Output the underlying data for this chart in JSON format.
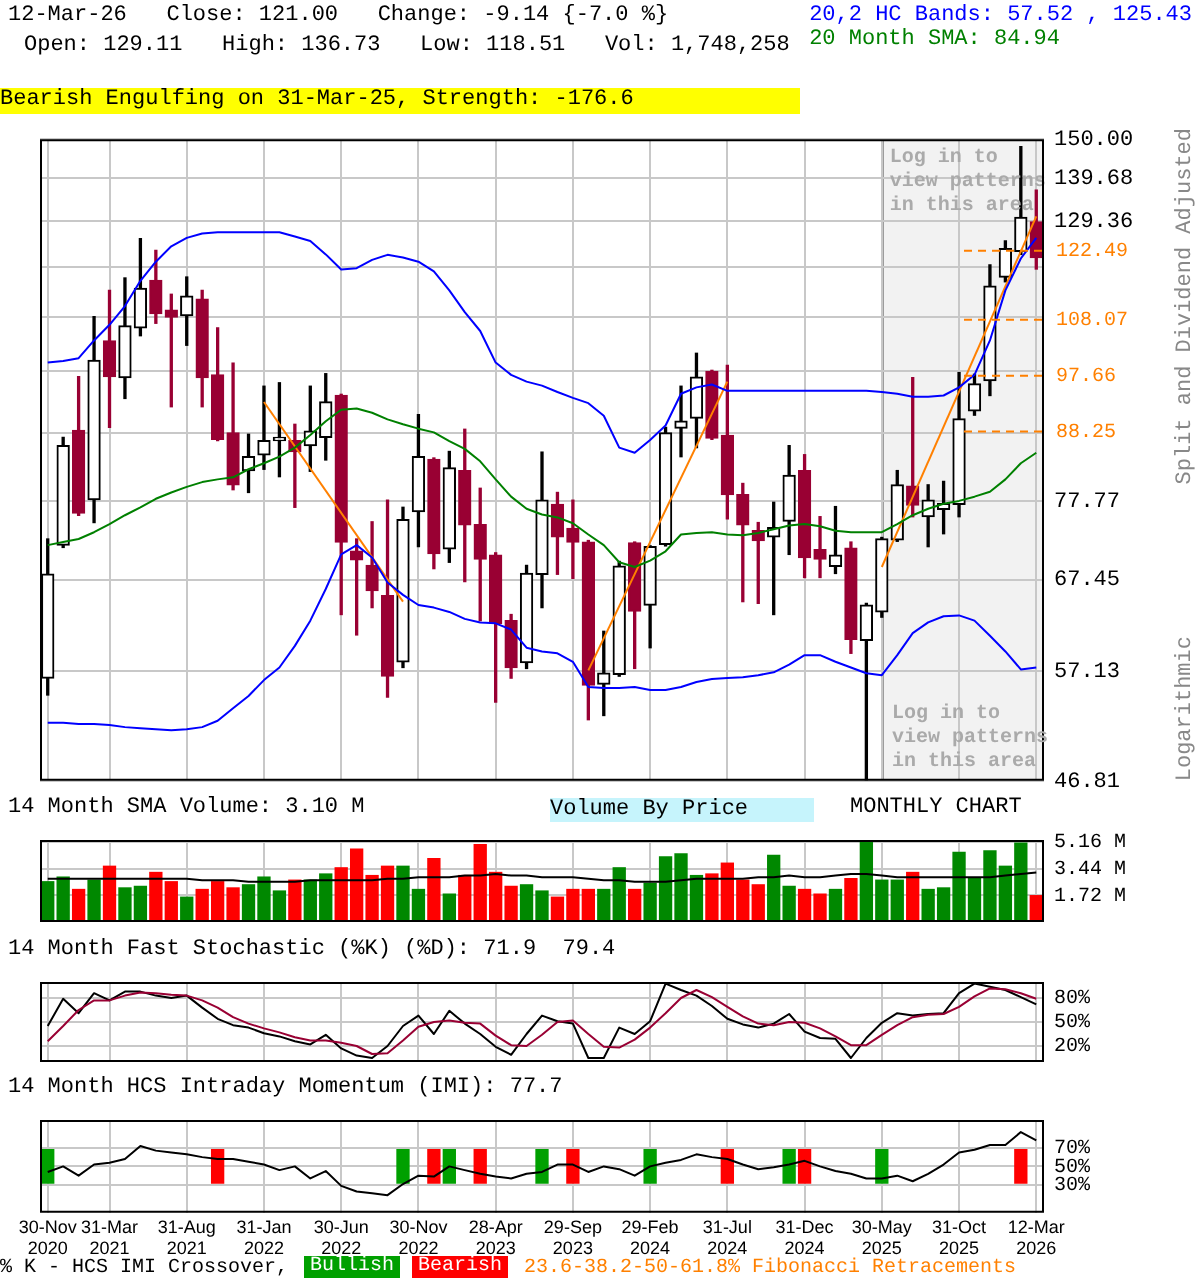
{
  "chart_data": [
    {
      "type": "candlestick",
      "title": "12-Mar-26   Close: 121.00   Change: -9.14 {-7.0 %}",
      "subtitle": "Open: 129.11   High: 136.73   Low: 118.51   Vol: 1,748,258",
      "ylabel": "Split and Dividend Adjusted",
      "categories": [
        "30-Nov 2020",
        null,
        null,
        null,
        "31-Mar 2021",
        null,
        null,
        null,
        null,
        "31-Aug 2021",
        null,
        null,
        null,
        null,
        "31-Jan 2022",
        null,
        null,
        null,
        null,
        "30-Jun 2022",
        null,
        null,
        null,
        null,
        "30-Nov 2022",
        null,
        null,
        null,
        null,
        "28-Apr 2023",
        null,
        null,
        null,
        null,
        "29-Sep 2023",
        null,
        null,
        null,
        null,
        "29-Feb 2024",
        null,
        null,
        null,
        null,
        "31-Jul 2024",
        null,
        null,
        null,
        null,
        "31-Dec 2024",
        null,
        null,
        null,
        null,
        "30-May 2025",
        null,
        null,
        null,
        null,
        "31-Oct 2025",
        null,
        null,
        null,
        null,
        "12-Mar 2026"
      ],
      "ohlc": [
        [
          56.4,
          72.6,
          54.7,
          68.1
        ],
        [
          71.8,
          87.3,
          71.5,
          86.0
        ],
        [
          88.4,
          97.5,
          75.8,
          76.1
        ],
        [
          78.0,
          108.7,
          74.8,
          100.4
        ],
        [
          104.0,
          114.0,
          88.9,
          97.5
        ],
        [
          97.3,
          116.6,
          93.7,
          106.9
        ],
        [
          106.5,
          125.2,
          105.0,
          114.4
        ],
        [
          116.1,
          122.6,
          107.4,
          109.3
        ],
        [
          110.0,
          113.2,
          92.3,
          108.6
        ],
        [
          108.9,
          116.8,
          103.2,
          112.8
        ],
        [
          112.2,
          114.0,
          92.3,
          97.3
        ],
        [
          97.8,
          106.5,
          86.8,
          87.0
        ],
        [
          88.0,
          99.9,
          79.4,
          80.1
        ],
        [
          82.2,
          87.8,
          79.0,
          84.3
        ],
        [
          84.6,
          95.8,
          82.4,
          86.8
        ],
        [
          86.8,
          96.4,
          81.3,
          87.3
        ],
        [
          86.8,
          89.4,
          76.9,
          85.1
        ],
        [
          86.0,
          95.8,
          82.1,
          88.3
        ],
        [
          87.3,
          98.0,
          83.8,
          93.1
        ],
        [
          94.2,
          94.4,
          63.3,
          72.2
        ],
        [
          71.0,
          72.6,
          61.0,
          69.9
        ],
        [
          69.2,
          74.9,
          64.1,
          66.1
        ],
        [
          65.5,
          77.9,
          54.5,
          56.6
        ],
        [
          58.1,
          76.9,
          57.5,
          75.2
        ],
        [
          76.3,
          91.0,
          71.6,
          84.3
        ],
        [
          83.9,
          84.1,
          68.8,
          70.7
        ],
        [
          71.3,
          85.1,
          69.6,
          82.6
        ],
        [
          82.2,
          88.6,
          67.2,
          74.5
        ],
        [
          74.5,
          79.6,
          62.6,
          70.0
        ],
        [
          70.5,
          70.8,
          54.0,
          62.3
        ],
        [
          62.6,
          63.3,
          56.4,
          57.5
        ],
        [
          58.0,
          69.2,
          57.4,
          68.2
        ],
        [
          68.1,
          85.0,
          64.1,
          77.9
        ],
        [
          77.3,
          79.0,
          68.1,
          72.9
        ],
        [
          74.0,
          77.9,
          67.6,
          72.2
        ],
        [
          72.2,
          72.4,
          52.3,
          55.7
        ],
        [
          55.8,
          61.4,
          52.7,
          56.9
        ],
        [
          56.8,
          69.7,
          56.6,
          69.1
        ],
        [
          72.1,
          72.2,
          57.4,
          63.7
        ],
        [
          64.4,
          71.7,
          59.6,
          71.6
        ],
        [
          71.9,
          88.9,
          71.7,
          88.0
        ],
        [
          88.8,
          95.8,
          84.3,
          89.9
        ],
        [
          90.4,
          101.7,
          85.7,
          97.4
        ],
        [
          98.4,
          98.6,
          87.0,
          87.2
        ],
        [
          87.6,
          99.5,
          75.3,
          78.7
        ],
        [
          78.7,
          80.3,
          64.8,
          74.5
        ],
        [
          73.7,
          74.8,
          64.6,
          72.4
        ],
        [
          72.9,
          77.6,
          63.3,
          74.1
        ],
        [
          75.0,
          86.0,
          70.6,
          81.5
        ],
        [
          82.2,
          84.6,
          67.7,
          70.2
        ],
        [
          71.2,
          75.6,
          67.7,
          70.0
        ],
        [
          69.1,
          77.0,
          68.2,
          70.5
        ],
        [
          71.4,
          72.2,
          59.0,
          60.5
        ],
        [
          60.4,
          64.6,
          46.9,
          64.4
        ],
        [
          63.6,
          72.8,
          63.0,
          72.6
        ],
        [
          72.5,
          82.2,
          72.3,
          80.1
        ],
        [
          79.9,
          97.3,
          75.6,
          77.2
        ],
        [
          75.6,
          80.1,
          71.6,
          77.9
        ],
        [
          76.6,
          80.6,
          73.3,
          77.4
        ],
        [
          77.3,
          98.2,
          75.6,
          90.3
        ],
        [
          91.6,
          97.9,
          90.9,
          96.2
        ],
        [
          96.8,
          119.4,
          94.2,
          114.9
        ],
        [
          116.8,
          124.7,
          115.8,
          123.0
        ],
        [
          122.4,
          148.0,
          121.7,
          130.14
        ],
        [
          129.11,
          136.73,
          118.51,
          121.0
        ]
      ],
      "colors": [
        "#000000",
        "#000000",
        "#990033",
        "#000000",
        "#990033",
        "#000000",
        "#000000",
        "#990033",
        "#990033",
        "#000000",
        "#990033",
        "#990033",
        "#990033",
        "#000000",
        "#000000",
        "#000000",
        "#990033",
        "#000000",
        "#000000",
        "#990033",
        "#990033",
        "#990033",
        "#990033",
        "#000000",
        "#000000",
        "#990033",
        "#000000",
        "#990033",
        "#990033",
        "#990033",
        "#990033",
        "#000000",
        "#000000",
        "#990033",
        "#990033",
        "#990033",
        "#000000",
        "#000000",
        "#990033",
        "#000000",
        "#000000",
        "#000000",
        "#000000",
        "#990033",
        "#990033",
        "#990033",
        "#990033",
        "#000000",
        "#000000",
        "#990033",
        "#990033",
        "#000000",
        "#990033",
        "#000000",
        "#000000",
        "#000000",
        "#990033",
        "#000000",
        "#000000",
        "#000000",
        "#000000",
        "#000000",
        "#000000",
        "#000000",
        "#990033"
      ],
      "log": true,
      "ylim": [
        46.81,
        150
      ],
      "yticks": [
        {
          "value": 150,
          "label": "150.00"
        },
        139.68,
        129.36,
        {
          "value": 119.04,
          "label": null
        },
        {
          "value": 108.72,
          "label": null
        },
        {
          "value": 98.4,
          "label": null
        },
        {
          "value": 88.08,
          "label": null
        },
        77.77,
        67.45,
        57.13,
        46.81
      ],
      "grid": true,
      "legend": "top right",
      "tick_labels": "y",
      "series": [
        {
          "type": "line",
          "name": "20,2 HC Bands: 57.52 , 125.43",
          "color": "#0000ff",
          "values": [
            100.0,
            100.3,
            100.8,
            104.1,
            107.1,
            110.8,
            116.0,
            120.1,
            123.5,
            125.4,
            126.4,
            126.7,
            126.7,
            126.7,
            126.7,
            126.7,
            125.7,
            124.7,
            121.7,
            118.4,
            118.7,
            120.5,
            121.6,
            121.0,
            120.1,
            118.0,
            114.0,
            109.6,
            105.9,
            100.0,
            97.8,
            96.6,
            95.9,
            94.8,
            93.8,
            92.9,
            90.8,
            85.7,
            84.9,
            86.9,
            89.2,
            94.5,
            95.6,
            96.1,
            95.0,
            95.0,
            95.0,
            95.0,
            95.0,
            95.0,
            95.0,
            95.0,
            95.0,
            95.0,
            94.8,
            94.5,
            94.0,
            94.0,
            94.2,
            95.6,
            97.8,
            104.1,
            114.0,
            120.8,
            125.4
          ]
        },
        {
          "type": "line",
          "color": "#0000ff",
          "values": [
            52.0,
            52.0,
            51.9,
            51.9,
            51.8,
            51.6,
            51.5,
            51.4,
            51.3,
            51.4,
            51.6,
            52.2,
            53.4,
            54.6,
            56.2,
            57.5,
            59.8,
            62.6,
            66.3,
            70.6,
            71.8,
            70.2,
            67.1,
            65.6,
            64.4,
            64.1,
            63.6,
            62.8,
            62.4,
            62.3,
            61.6,
            59.6,
            59.2,
            59.0,
            58.1,
            55.5,
            55.4,
            55.4,
            55.5,
            55.2,
            55.2,
            55.5,
            56.0,
            56.3,
            56.4,
            56.5,
            56.7,
            57.0,
            57.8,
            58.8,
            58.8,
            58.1,
            57.5,
            56.9,
            56.7,
            58.8,
            61.2,
            62.4,
            63.1,
            63.2,
            62.6,
            60.9,
            59.2,
            57.3,
            57.5
          ]
        },
        {
          "type": "line",
          "name": "20 Month SMA: 84.94",
          "color": "#008000",
          "values": [
            71.8,
            72.2,
            72.6,
            73.5,
            74.6,
            75.8,
            76.9,
            78.1,
            79.0,
            79.8,
            80.5,
            80.9,
            81.2,
            82.4,
            83.3,
            84.3,
            85.7,
            87.7,
            89.9,
            91.8,
            92.0,
            91.3,
            90.2,
            89.4,
            88.7,
            88.1,
            86.7,
            85.5,
            83.6,
            80.9,
            78.4,
            76.7,
            75.9,
            75.5,
            74.7,
            73.2,
            71.8,
            69.6,
            69.0,
            69.8,
            71.0,
            73.2,
            73.4,
            73.5,
            73.2,
            73.1,
            73.4,
            73.9,
            74.4,
            74.6,
            74.3,
            73.7,
            73.5,
            73.5,
            73.5,
            74.6,
            75.8,
            76.7,
            77.4,
            77.8,
            78.4,
            79.1,
            80.9,
            83.3,
            84.9
          ]
        },
        {
          "type": "line",
          "color": "#ff8000",
          "values": [
            null,
            null,
            null,
            null,
            null,
            null,
            null,
            null,
            null,
            null,
            null,
            null,
            null,
            null,
            93.1,
            null,
            null,
            null,
            null,
            null,
            null,
            null,
            null,
            64.8,
            null,
            null,
            null,
            null,
            null,
            null,
            null,
            null,
            null,
            null,
            null,
            null,
            null,
            null,
            null,
            null,
            null,
            null,
            null,
            null,
            null,
            null,
            null,
            null,
            null,
            null,
            null,
            null,
            null,
            null,
            null,
            null,
            null,
            null,
            null,
            null,
            null,
            null,
            null,
            null,
            null
          ]
        },
        {
          "type": "line",
          "color": "#ff8000",
          "values": [
            null,
            null,
            null,
            null,
            null,
            null,
            null,
            null,
            null,
            null,
            null,
            null,
            null,
            null,
            null,
            null,
            null,
            null,
            null,
            null,
            null,
            null,
            null,
            null,
            null,
            null,
            null,
            null,
            null,
            null,
            null,
            null,
            null,
            null,
            null,
            57.2,
            null,
            null,
            null,
            null,
            null,
            null,
            null,
            null,
            96.6,
            null,
            null,
            null,
            null,
            null,
            null,
            null,
            null,
            null,
            null,
            null,
            null,
            null,
            null,
            null,
            null,
            null,
            null,
            null,
            null
          ]
        },
        {
          "type": "line",
          "color": "#ff8000",
          "values": [
            null,
            null,
            null,
            null,
            null,
            null,
            null,
            null,
            null,
            null,
            null,
            null,
            null,
            null,
            null,
            null,
            null,
            null,
            null,
            null,
            null,
            null,
            null,
            null,
            null,
            null,
            null,
            null,
            null,
            null,
            null,
            null,
            null,
            null,
            null,
            null,
            null,
            null,
            null,
            null,
            null,
            null,
            null,
            null,
            null,
            null,
            null,
            null,
            null,
            null,
            null,
            null,
            null,
            null,
            69.0,
            null,
            null,
            null,
            null,
            null,
            null,
            null,
            null,
            null,
            130.4
          ]
        }
      ],
      "ref_lines": [
        {
          "axis": "y",
          "value": 122.49,
          "label": "122.49",
          "color": "#ff8000",
          "line_style": "dashed"
        },
        {
          "axis": "y",
          "value": 108.07,
          "label": "108.07",
          "color": "#ff8000",
          "line_style": "dashed"
        },
        {
          "axis": "y",
          "value": 97.66,
          "label": "97.66",
          "color": "#ff8000",
          "line_style": "dashed"
        },
        {
          "axis": "y",
          "value": 88.25,
          "label": "88.25",
          "color": "#ff8000",
          "line_style": "dashed"
        }
      ],
      "bands": [
        {
          "axis": "x",
          "from": "30-May 2025",
          "to": "12-Mar 2026",
          "label": "Log in to view patterns in this area",
          "color": "#f2f2f2"
        }
      ],
      "annotations": [
        "Bearish Engulfing on 31-Mar-25, Strength: -176.6",
        "Log in to view patterns in this area",
        "Logarithmic",
        "23.6-38.2-50-61.8% Fibonacci Retracements",
        "Volume By Price"
      ]
    },
    {
      "type": "bar",
      "title": "14 Month SMA Volume: 3.10 M",
      "categories": [
        "30-Nov 2020",
        null,
        null,
        null,
        "31-Mar 2021",
        null,
        null,
        null,
        null,
        "31-Aug 2021",
        null,
        null,
        null,
        null,
        "31-Jan 2022",
        null,
        null,
        null,
        null,
        "30-Jun 2022",
        null,
        null,
        null,
        null,
        "30-Nov 2022",
        null,
        null,
        null,
        null,
        "28-Apr 2023",
        null,
        null,
        null,
        null,
        "29-Sep 2023",
        null,
        null,
        null,
        null,
        "29-Feb 2024",
        null,
        null,
        null,
        null,
        "31-Jul 2024",
        null,
        null,
        null,
        null,
        "31-Dec 2024",
        null,
        null,
        null,
        null,
        "30-May 2025",
        null,
        null,
        null,
        null,
        "31-Oct 2025",
        null,
        null,
        null,
        null,
        "12-Mar 2026"
      ],
      "series": [
        {
          "values": [
            2.6,
            2.9,
            2.1,
            2.7,
            3.6,
            2.2,
            2.3,
            3.2,
            2.6,
            1.6,
            2.1,
            2.6,
            2.2,
            2.4,
            2.9,
            2.0,
            2.7,
            2.7,
            3.1,
            3.5,
            4.7,
            3.0,
            3.6,
            3.6,
            2.1,
            4.1,
            1.8,
            3.0,
            5.0,
            3.2,
            2.3,
            2.4,
            2.0,
            1.6,
            2.1,
            2.1,
            2.1,
            3.5,
            2.1,
            2.5,
            4.2,
            4.4,
            3.0,
            3.1,
            3.8,
            2.7,
            2.4,
            4.3,
            2.3,
            2.1,
            1.8,
            2.1,
            2.8,
            5.3,
            2.7,
            2.7,
            3.2,
            2.1,
            2.2,
            4.5,
            2.8,
            4.6,
            3.6,
            5.1,
            1.7
          ],
          "colors": [
            "#008800",
            "#008800",
            "#ff0000",
            "#008800",
            "#ff0000",
            "#008800",
            "#008800",
            "#ff0000",
            "#ff0000",
            "#008800",
            "#ff0000",
            "#ff0000",
            "#ff0000",
            "#008800",
            "#008800",
            "#008800",
            "#ff0000",
            "#008800",
            "#008800",
            "#ff0000",
            "#ff0000",
            "#ff0000",
            "#ff0000",
            "#008800",
            "#008800",
            "#ff0000",
            "#008800",
            "#ff0000",
            "#ff0000",
            "#ff0000",
            "#ff0000",
            "#008800",
            "#008800",
            "#ff0000",
            "#ff0000",
            "#ff0000",
            "#008800",
            "#008800",
            "#ff0000",
            "#008800",
            "#008800",
            "#008800",
            "#008800",
            "#ff0000",
            "#ff0000",
            "#ff0000",
            "#ff0000",
            "#008800",
            "#008800",
            "#ff0000",
            "#ff0000",
            "#008800",
            "#ff0000",
            "#008800",
            "#008800",
            "#008800",
            "#ff0000",
            "#008800",
            "#008800",
            "#008800",
            "#008800",
            "#008800",
            "#008800",
            "#008800",
            "#ff0000"
          ]
        },
        {
          "type": "line",
          "color": "#000000",
          "values": [
            2.8,
            2.8,
            2.8,
            2.8,
            2.8,
            2.8,
            2.8,
            2.8,
            2.8,
            2.8,
            2.7,
            2.7,
            2.7,
            2.6,
            2.6,
            2.6,
            2.6,
            2.7,
            2.7,
            2.7,
            2.7,
            2.7,
            2.8,
            2.8,
            2.9,
            2.9,
            2.9,
            3.0,
            3.0,
            3.1,
            3.0,
            3.0,
            2.9,
            2.9,
            2.9,
            2.8,
            2.7,
            2.7,
            2.6,
            2.6,
            2.6,
            2.7,
            2.8,
            2.8,
            2.8,
            2.8,
            2.9,
            2.9,
            3.0,
            2.9,
            2.9,
            3.0,
            3.1,
            3.1,
            3.0,
            2.9,
            2.9,
            2.9,
            2.9,
            2.9,
            2.9,
            2.9,
            3.0,
            3.1,
            3.2
          ]
        }
      ],
      "ylim": [
        0,
        5.3
      ],
      "yticks": [
        {
          "value": 1.72,
          "label": "1.72 M"
        },
        {
          "value": 3.44,
          "label": "3.44 M"
        },
        {
          "value": 5.16,
          "label": "5.16 M"
        }
      ],
      "grid": true,
      "tick_labels": "y",
      "annotations": [
        "MONTHLY CHART"
      ]
    },
    {
      "type": "line",
      "title": "14 Month Fast Stochastic (%K) (%D): 71.9  79.4",
      "categories": [
        "30-Nov 2020",
        null,
        null,
        null,
        "31-Mar 2021",
        null,
        null,
        null,
        null,
        "31-Aug 2021",
        null,
        null,
        null,
        null,
        "31-Jan 2022",
        null,
        null,
        null,
        null,
        "30-Jun 2022",
        null,
        null,
        null,
        null,
        "30-Nov 2022",
        null,
        null,
        null,
        null,
        "28-Apr 2023",
        null,
        null,
        null,
        null,
        "29-Sep 2023",
        null,
        null,
        null,
        null,
        "29-Feb 2024",
        null,
        null,
        null,
        null,
        "31-Jul 2024",
        null,
        null,
        null,
        null,
        "31-Dec 2024",
        null,
        null,
        null,
        null,
        "30-May 2025",
        null,
        null,
        null,
        null,
        "31-Oct 2025",
        null,
        null,
        null,
        null,
        "12-Mar 2026"
      ],
      "series": [
        {
          "color": "#990033",
          "values": [
            26,
            45,
            65,
            77,
            77,
            83,
            87,
            86,
            84,
            83,
            77,
            68,
            56,
            48,
            42,
            37,
            31,
            27,
            27,
            24,
            20,
            10,
            11,
            27,
            44,
            50,
            52,
            49,
            48,
            33,
            21,
            20,
            34,
            50,
            52,
            35,
            19,
            18,
            28,
            43,
            61,
            80,
            90,
            81,
            69,
            57,
            48,
            46,
            50,
            49,
            42,
            32,
            21,
            21,
            34,
            46,
            56,
            59,
            60,
            69,
            82,
            92,
            91,
            86,
            79
          ]
        },
        {
          "color": "#000000",
          "values": [
            45,
            79,
            61,
            86,
            77,
            88,
            88,
            83,
            80,
            83,
            68,
            54,
            46,
            43,
            36,
            32,
            26,
            22,
            34,
            17,
            8,
            5,
            20,
            45,
            58,
            35,
            64,
            48,
            35,
            19,
            9,
            35,
            58,
            51,
            48,
            5,
            5,
            43,
            35,
            51,
            98,
            90,
            83,
            70,
            54,
            47,
            43,
            48,
            60,
            38,
            30,
            29,
            5,
            30,
            49,
            61,
            58,
            60,
            61,
            86,
            98,
            94,
            90,
            81,
            72
          ]
        }
      ],
      "ylim": [
        0,
        100
      ],
      "yticks": [
        {
          "value": 20,
          "label": "20%"
        },
        {
          "value": 50,
          "label": "50%"
        },
        {
          "value": 80,
          "label": "80%"
        }
      ],
      "grid": true,
      "tick_labels": "y"
    },
    {
      "type": "line",
      "title": "14 Month HCS Intraday Momentum (IMI): 77.7",
      "categories": [
        "30-Nov 2020",
        null,
        null,
        null,
        "31-Mar 2021",
        null,
        null,
        null,
        null,
        "31-Aug 2021",
        null,
        null,
        null,
        null,
        "31-Jan 2022",
        null,
        null,
        null,
        null,
        "30-Jun 2022",
        null,
        null,
        null,
        null,
        "30-Nov 2022",
        null,
        null,
        null,
        null,
        "28-Apr 2023",
        null,
        null,
        null,
        null,
        "29-Sep 2023",
        null,
        null,
        null,
        null,
        "29-Feb 2024",
        null,
        null,
        null,
        null,
        "31-Jul 2024",
        null,
        null,
        null,
        null,
        "31-Dec 2024",
        null,
        null,
        null,
        null,
        "30-May 2025",
        null,
        null,
        null,
        null,
        "31-Oct 2025",
        null,
        null,
        null,
        null,
        "12-Mar 2026"
      ],
      "series": [
        {
          "type": "bar",
          "name": "Bullish",
          "color": "#00a000",
          "values": [
            36,
            null,
            null,
            null,
            null,
            null,
            null,
            null,
            null,
            null,
            null,
            null,
            null,
            null,
            null,
            null,
            null,
            null,
            null,
            null,
            null,
            null,
            null,
            36,
            null,
            null,
            36,
            null,
            null,
            null,
            null,
            null,
            36,
            null,
            null,
            null,
            null,
            null,
            null,
            36,
            null,
            null,
            null,
            null,
            null,
            null,
            null,
            null,
            36,
            null,
            null,
            null,
            null,
            null,
            36,
            null,
            null,
            null,
            null,
            null,
            null,
            null,
            null,
            null,
            null
          ],
          "base": [
            32,
            null,
            null,
            null,
            null,
            null,
            null,
            null,
            null,
            null,
            null,
            null,
            null,
            null,
            null,
            null,
            null,
            null,
            null,
            null,
            null,
            null,
            null,
            32,
            null,
            null,
            32,
            null,
            null,
            null,
            null,
            null,
            32,
            null,
            null,
            null,
            null,
            null,
            null,
            32,
            null,
            null,
            null,
            null,
            null,
            null,
            null,
            null,
            32,
            null,
            null,
            null,
            null,
            null,
            32,
            null,
            null,
            null,
            null,
            null,
            null,
            null,
            null,
            null,
            null
          ]
        },
        {
          "type": "bar",
          "name": "Bearish",
          "color": "#ff0000",
          "values": [
            null,
            null,
            null,
            null,
            null,
            null,
            null,
            null,
            null,
            null,
            null,
            36,
            null,
            null,
            null,
            null,
            null,
            null,
            null,
            null,
            null,
            null,
            null,
            null,
            null,
            36,
            null,
            null,
            36,
            null,
            null,
            null,
            null,
            null,
            36,
            null,
            null,
            null,
            null,
            null,
            null,
            null,
            null,
            null,
            36,
            null,
            null,
            null,
            null,
            36,
            null,
            null,
            null,
            null,
            null,
            null,
            null,
            null,
            null,
            null,
            null,
            null,
            null,
            36,
            null
          ],
          "base": [
            null,
            null,
            null,
            null,
            null,
            null,
            null,
            null,
            null,
            null,
            null,
            32,
            null,
            null,
            null,
            null,
            null,
            null,
            null,
            null,
            null,
            null,
            null,
            null,
            null,
            32,
            null,
            null,
            32,
            null,
            null,
            null,
            null,
            null,
            32,
            null,
            null,
            null,
            null,
            null,
            null,
            null,
            null,
            null,
            32,
            null,
            null,
            null,
            null,
            32,
            null,
            null,
            null,
            null,
            null,
            null,
            null,
            null,
            null,
            null,
            null,
            null,
            null,
            32,
            null
          ]
        },
        {
          "color": "#000000",
          "values": [
            44,
            50,
            40,
            52,
            54,
            58,
            72,
            67,
            65,
            63,
            60,
            58,
            58,
            55,
            52,
            46,
            50,
            37,
            45,
            29,
            23,
            21,
            19,
            31,
            40,
            39,
            50,
            46,
            42,
            39,
            37,
            42,
            44,
            52,
            52,
            44,
            50,
            47,
            40,
            50,
            54,
            57,
            63,
            60,
            58,
            52,
            47,
            49,
            52,
            56,
            50,
            45,
            42,
            37,
            37,
            40,
            34,
            42,
            52,
            65,
            68,
            73,
            73,
            87,
            78
          ]
        }
      ],
      "ylim": [
        0,
        100
      ],
      "yticks": [
        {
          "value": 30,
          "label": "30%"
        },
        {
          "value": 50,
          "label": "50%"
        },
        {
          "value": 70,
          "label": "70%"
        }
      ],
      "grid": true,
      "legend": "bottom",
      "annotations": [
        "% K - HCS IMI Crossover,"
      ]
    }
  ]
}
